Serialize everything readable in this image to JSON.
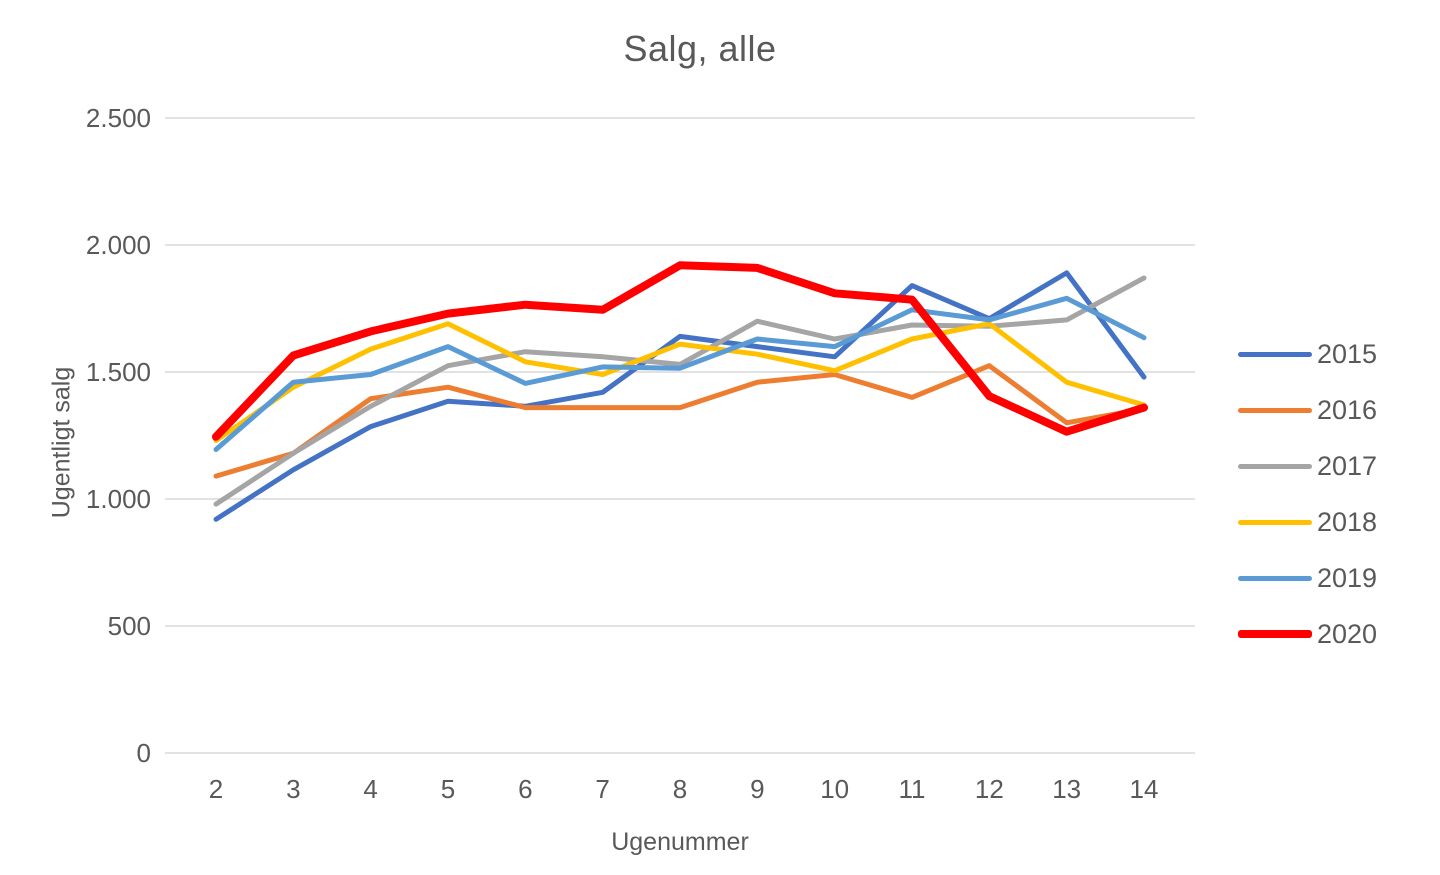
{
  "chart_data": {
    "type": "line",
    "title": "Salg, alle",
    "xlabel": "Ugenummer",
    "ylabel": "Ugentligt salg",
    "x": [
      2,
      3,
      4,
      5,
      6,
      7,
      8,
      9,
      10,
      11,
      12,
      13,
      14
    ],
    "ylim": [
      0,
      2500
    ],
    "y_ticks": [
      {
        "value": 0,
        "label": "0"
      },
      {
        "value": 500,
        "label": "500"
      },
      {
        "value": 1000,
        "label": "1.000"
      },
      {
        "value": 1500,
        "label": "1.500"
      },
      {
        "value": 2000,
        "label": "2.000"
      },
      {
        "value": 2500,
        "label": "2.500"
      }
    ],
    "grid": "horizontal",
    "legend_position": "right",
    "series": [
      {
        "name": "2015",
        "color": "#4472C4",
        "stroke_width": 5,
        "values": [
          920,
          1115,
          1285,
          1385,
          1365,
          1420,
          1640,
          1600,
          1560,
          1840,
          1710,
          1890,
          1480
        ]
      },
      {
        "name": "2016",
        "color": "#ED7D31",
        "stroke_width": 5,
        "values": [
          1090,
          1180,
          1395,
          1440,
          1360,
          1360,
          1360,
          1460,
          1490,
          1400,
          1525,
          1300,
          1355
        ]
      },
      {
        "name": "2017",
        "color": "#A5A5A5",
        "stroke_width": 5,
        "values": [
          980,
          1180,
          1365,
          1525,
          1580,
          1560,
          1530,
          1700,
          1630,
          1685,
          1680,
          1705,
          1870
        ]
      },
      {
        "name": "2018",
        "color": "#FFC000",
        "stroke_width": 5,
        "values": [
          1230,
          1440,
          1590,
          1690,
          1540,
          1490,
          1610,
          1570,
          1505,
          1630,
          1690,
          1460,
          1370
        ]
      },
      {
        "name": "2019",
        "color": "#5B9BD5",
        "stroke_width": 5,
        "values": [
          1195,
          1460,
          1490,
          1600,
          1455,
          1520,
          1515,
          1630,
          1600,
          1745,
          1705,
          1790,
          1635
        ]
      },
      {
        "name": "2020",
        "color": "#FF0000",
        "stroke_width": 8,
        "values": [
          1245,
          1565,
          1660,
          1730,
          1765,
          1745,
          1920,
          1910,
          1810,
          1785,
          1405,
          1265,
          1360
        ]
      }
    ],
    "colors": {
      "gridline": "#D9D9D9",
      "text": "#595959",
      "background": "#FFFFFF"
    }
  }
}
